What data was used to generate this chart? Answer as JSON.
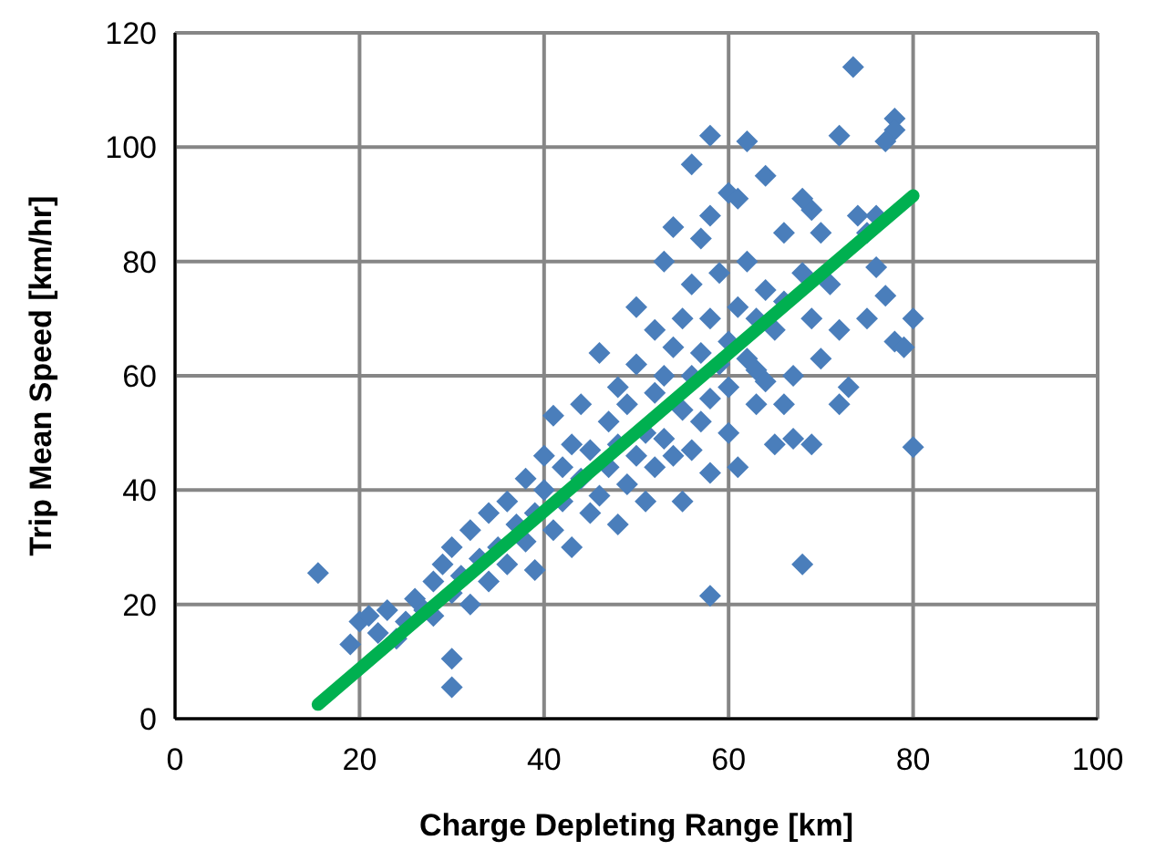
{
  "chart_data": {
    "type": "scatter",
    "xlabel": "Charge Depleting Range [km]",
    "ylabel": "Trip Mean Speed [km/hr]",
    "xlim": [
      0,
      100
    ],
    "xticks": [
      0,
      20,
      40,
      60,
      80,
      100
    ],
    "ylim": [
      0,
      120
    ],
    "yticks": [
      0,
      20,
      40,
      60,
      80,
      100,
      120
    ],
    "grid": true,
    "x": [
      15.5,
      73.5,
      78,
      78,
      77,
      72,
      58,
      62,
      56,
      64,
      60,
      61,
      58,
      69,
      76,
      66,
      80,
      68,
      58,
      30,
      30,
      80,
      78,
      79,
      77,
      76,
      73,
      72,
      70,
      69,
      67,
      66,
      63,
      75,
      68,
      19,
      20,
      21,
      22,
      23,
      24,
      25,
      26,
      27,
      28,
      28,
      29,
      30,
      30,
      31,
      32,
      32,
      33,
      34,
      34,
      35,
      36,
      36,
      37,
      38,
      38,
      39,
      39,
      40,
      40,
      41,
      41,
      42,
      42,
      43,
      43,
      44,
      44,
      45,
      45,
      46,
      46,
      47,
      47,
      48,
      48,
      48,
      49,
      49,
      50,
      50,
      50,
      51,
      51,
      52,
      52,
      52,
      53,
      53,
      53,
      54,
      54,
      54,
      55,
      55,
      55,
      56,
      56,
      56,
      57,
      57,
      57,
      58,
      58,
      58,
      59,
      59,
      60,
      60,
      60,
      61,
      61,
      62,
      62,
      63,
      63,
      64,
      64,
      65,
      65,
      66,
      67,
      68,
      69,
      70,
      71,
      72,
      74,
      75
    ],
    "series": [
      {
        "color": "#4a7ebb",
        "marker": "diamond",
        "values": [
          25.5,
          114,
          105,
          103,
          101,
          102,
          102,
          101,
          97,
          95,
          92,
          91,
          88,
          89,
          88,
          85,
          47.5,
          27,
          21.5,
          10.5,
          5.5,
          70,
          66,
          65,
          74,
          79,
          58,
          55,
          63,
          48,
          49,
          55,
          61,
          85,
          91,
          13,
          17,
          18,
          15,
          19,
          14,
          17,
          21,
          19,
          24,
          18,
          27,
          22,
          30,
          25,
          20,
          33,
          28,
          24,
          36,
          30,
          27,
          38,
          34,
          31,
          42,
          26,
          36,
          40,
          46,
          33,
          53,
          38,
          44,
          30,
          48,
          42,
          55,
          36,
          47,
          39,
          64,
          44,
          52,
          48,
          34,
          58,
          41,
          55,
          46,
          62,
          72,
          38,
          50,
          57,
          44,
          68,
          49,
          60,
          80,
          46,
          65,
          86,
          54,
          38,
          70,
          60,
          47,
          76,
          64,
          52,
          84,
          56,
          70,
          43,
          62,
          78,
          66,
          50,
          58,
          72,
          44,
          63,
          80,
          55,
          70,
          59,
          75,
          48,
          68,
          73,
          60,
          78,
          70,
          85,
          76,
          68,
          88,
          70
        ]
      },
      {
        "type": "line",
        "x": [
          15.5,
          80
        ],
        "color": "#00b050",
        "marker": "none",
        "values": [
          2.5,
          91.5
        ]
      }
    ]
  }
}
